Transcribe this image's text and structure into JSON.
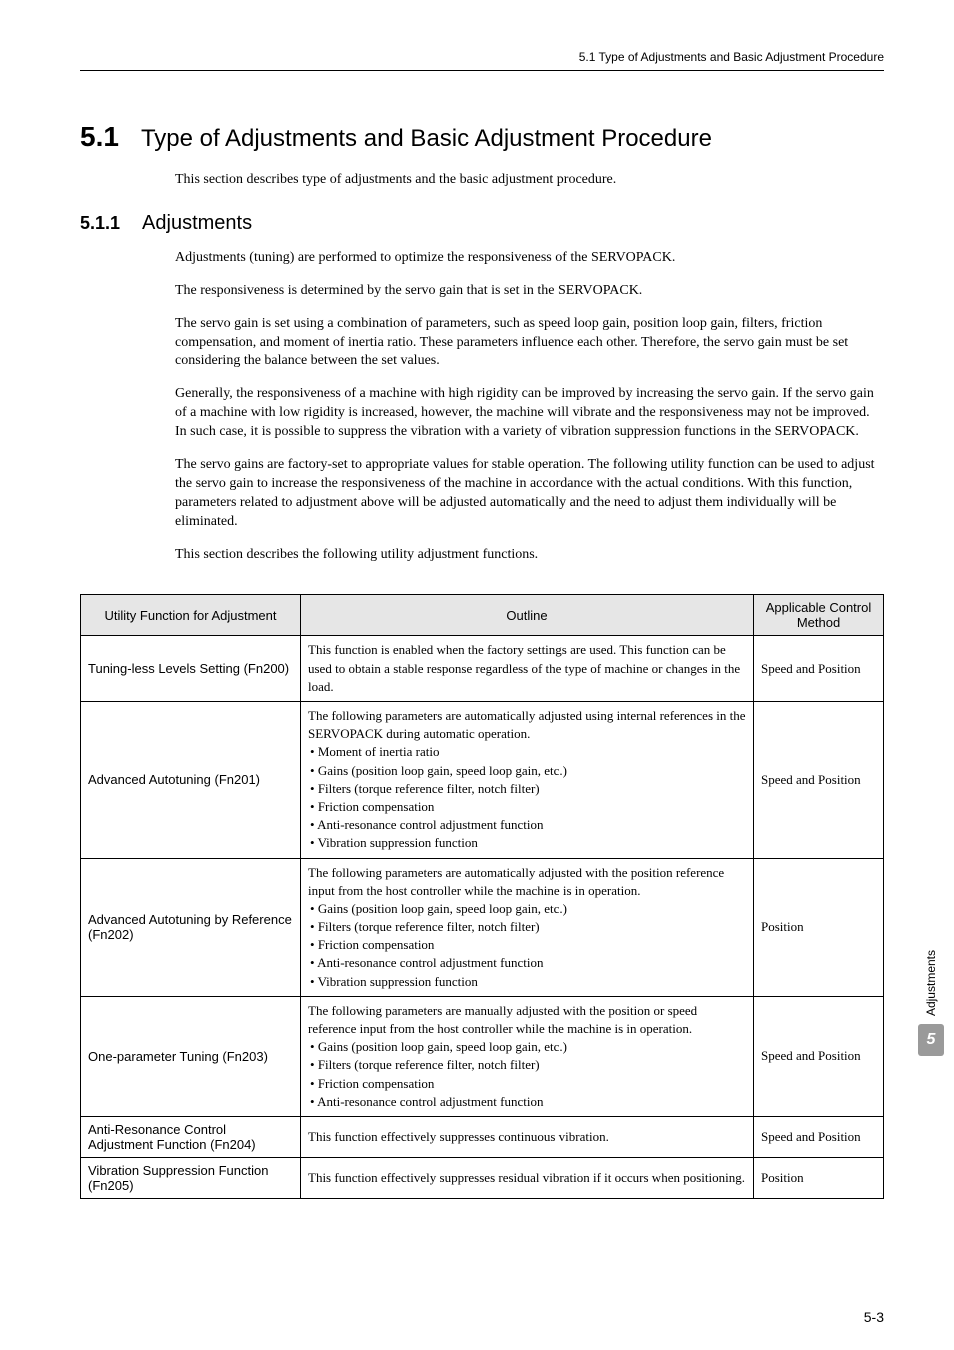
{
  "header": {
    "breadcrumb": "5.1  Type of Adjustments and Basic Adjustment Procedure"
  },
  "section": {
    "number": "5.1",
    "title": "Type of Adjustments and Basic Adjustment Procedure",
    "intro": "This section describes type of adjustments and the basic adjustment procedure."
  },
  "subsection": {
    "number": "5.1.1",
    "title": "Adjustments",
    "paragraphs": [
      "Adjustments (tuning) are performed to optimize the responsiveness of the SERVOPACK.",
      "The responsiveness is determined by the servo gain that is set in the SERVOPACK.",
      "The servo gain is set using a combination of parameters, such as speed loop gain, position loop gain, filters, friction compensation, and moment of inertia ratio. These parameters influence each other. Therefore, the servo gain must be set considering the balance between the set values.",
      "Generally, the responsiveness of a machine with high rigidity can be improved by increasing the servo gain. If the servo gain of a machine with low rigidity is increased, however, the machine will vibrate and the responsiveness may not be improved. In such case, it is possible to suppress the vibration with a variety of vibration suppression functions in the SERVOPACK.",
      "The servo gains are factory-set to appropriate values for stable operation. The following utility function can be used to adjust the servo gain to increase the responsiveness of the machine in accordance with the actual conditions. With this function, parameters related to adjustment above will be adjusted automatically and the need to adjust them individually will be eliminated.",
      "This section describes the following utility adjustment functions."
    ]
  },
  "table": {
    "headers": [
      "Utility Function for Adjustment",
      "Outline",
      "Applicable Control Method"
    ],
    "rows": [
      {
        "name": "Tuning-less Levels Setting (Fn200)",
        "outline_text": "This function is enabled when the factory settings are used. This function can be used to obtain a stable response regardless of the type of machine or changes in the load.",
        "outline_bullets": [],
        "method": "Speed and Position"
      },
      {
        "name": "Advanced Autotuning (Fn201)",
        "outline_text": "The following parameters are automatically adjusted using internal references in the SERVOPACK during automatic operation.",
        "outline_bullets": [
          "Moment of inertia ratio",
          "Gains (position loop gain, speed loop gain, etc.)",
          "Filters (torque reference filter, notch filter)",
          "Friction compensation",
          "Anti-resonance control adjustment function",
          "Vibration suppression function"
        ],
        "method": "Speed and Position"
      },
      {
        "name": "Advanced Autotuning by Reference (Fn202)",
        "outline_text": "The following parameters are automatically adjusted with the position reference input from the host controller while the machine is in operation.",
        "outline_bullets": [
          "Gains (position loop gain, speed loop gain, etc.)",
          "Filters (torque reference filter, notch filter)",
          "Friction compensation",
          "Anti-resonance control adjustment function",
          "Vibration suppression function"
        ],
        "method": "Position"
      },
      {
        "name": "One-parameter Tuning (Fn203)",
        "outline_text": "The following parameters are manually adjusted with the position or speed reference input from the host controller while the machine is in operation.",
        "outline_bullets": [
          "Gains (position loop gain, speed loop gain, etc.)",
          "Filters (torque reference filter, notch filter)",
          "Friction compensation",
          "Anti-resonance control adjustment function"
        ],
        "method": "Speed and Position"
      },
      {
        "name": "Anti-Resonance Control Adjustment Function (Fn204)",
        "outline_text": "This function effectively suppresses continuous vibration.",
        "outline_bullets": [],
        "method": "Speed and Position"
      },
      {
        "name": "Vibration Suppression Function (Fn205)",
        "outline_text": "This function effectively suppresses residual vibration if it occurs when positioning.",
        "outline_bullets": [],
        "method": "Position"
      }
    ]
  },
  "side": {
    "label": "Adjustments",
    "chapter": "5"
  },
  "footer": {
    "page": "5-3"
  },
  "style": {
    "header_bg": "#e6e6e6",
    "tab_bg": "#9a9a9a",
    "text_color": "#000000",
    "page_bg": "#ffffff"
  }
}
